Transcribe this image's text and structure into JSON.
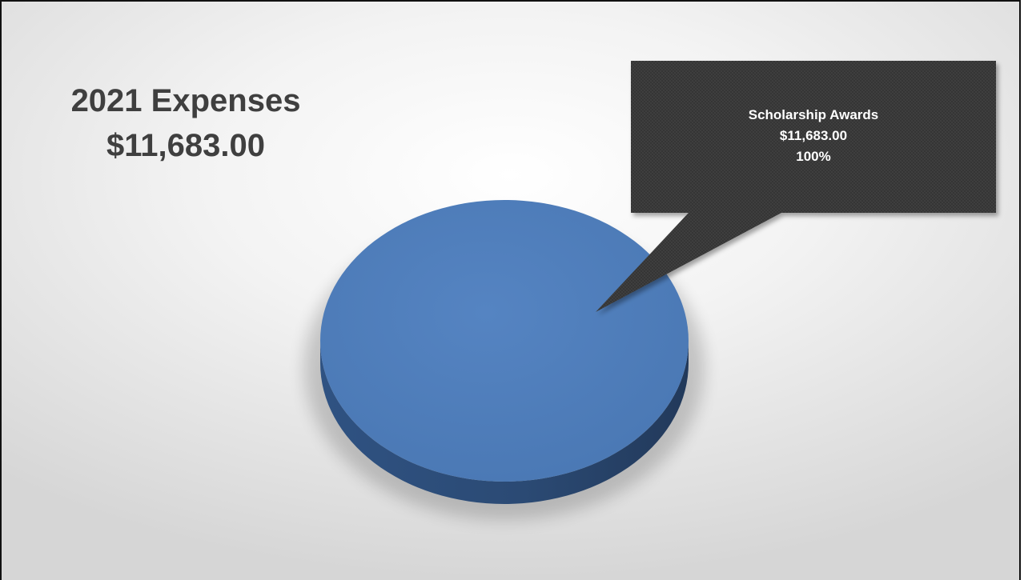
{
  "slide": {
    "title": "2021 Expenses",
    "total": "$11,683.00"
  },
  "chart_data": {
    "type": "pie",
    "three_d": true,
    "title": "2021 Expenses",
    "categories": [
      "Scholarship Awards"
    ],
    "values": [
      11683.0
    ],
    "data_labels": [
      {
        "category": "Scholarship Awards",
        "value": "$11,683.00",
        "percent": "100%"
      }
    ],
    "legend": "none",
    "colors": {
      "slice_top": "#5080bd",
      "slice_side": "#2d4b72",
      "callout": "#3a3a3a",
      "callout_text": "#ffffff"
    }
  }
}
